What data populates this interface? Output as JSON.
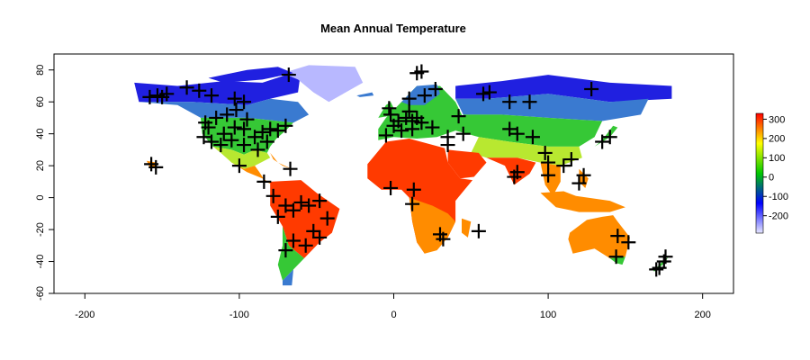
{
  "chart_data": {
    "type": "scatter",
    "title": "Mean Annual Temperature",
    "xlabel": "",
    "ylabel": "",
    "xlim": [
      -220,
      220
    ],
    "ylim": [
      -60,
      90
    ],
    "x_ticks": [
      -200,
      -100,
      0,
      100,
      200
    ],
    "y_ticks": [
      -60,
      -40,
      -20,
      0,
      20,
      40,
      60,
      80
    ],
    "colorbar": {
      "range": [
        -290,
        330
      ],
      "ticks": [
        300,
        200,
        100,
        0,
        -100,
        -200
      ],
      "colors": [
        "#e6e6ff",
        "#0000ff",
        "#00c800",
        "#ffff00",
        "#ff0000"
      ],
      "placement": "right"
    },
    "raster_colors": {
      "polar": "#2020e0",
      "ice": "#b8b8ff",
      "cold": "#3a7ad0",
      "temperate": "#36c836",
      "mild": "#b8e830",
      "warm": "#ff8c00",
      "hot": "#ff3a00",
      "tropical": "#ff6000"
    },
    "marker": "plus",
    "points": [
      {
        "x": -158,
        "y": 63
      },
      {
        "x": -153,
        "y": 64
      },
      {
        "x": -147,
        "y": 65
      },
      {
        "x": -150,
        "y": 63
      },
      {
        "x": -134,
        "y": 69
      },
      {
        "x": -126,
        "y": 67
      },
      {
        "x": -118,
        "y": 64
      },
      {
        "x": -103,
        "y": 62
      },
      {
        "x": -97,
        "y": 60
      },
      {
        "x": -102,
        "y": 55
      },
      {
        "x": -108,
        "y": 52
      },
      {
        "x": -95,
        "y": 49
      },
      {
        "x": -115,
        "y": 50
      },
      {
        "x": -122,
        "y": 47
      },
      {
        "x": -120,
        "y": 44
      },
      {
        "x": -123,
        "y": 38
      },
      {
        "x": -118,
        "y": 35
      },
      {
        "x": -112,
        "y": 33
      },
      {
        "x": -105,
        "y": 36
      },
      {
        "x": -97,
        "y": 33
      },
      {
        "x": -90,
        "y": 38
      },
      {
        "x": -85,
        "y": 41
      },
      {
        "x": -80,
        "y": 43
      },
      {
        "x": -75,
        "y": 42
      },
      {
        "x": -70,
        "y": 45
      },
      {
        "x": -88,
        "y": 30
      },
      {
        "x": -82,
        "y": 35
      },
      {
        "x": -97,
        "y": 43
      },
      {
        "x": -103,
        "y": 44
      },
      {
        "x": -110,
        "y": 40
      },
      {
        "x": -100,
        "y": 20
      },
      {
        "x": -84,
        "y": 10
      },
      {
        "x": -78,
        "y": 1
      },
      {
        "x": -70,
        "y": -5
      },
      {
        "x": -75,
        "y": -12
      },
      {
        "x": -65,
        "y": -8
      },
      {
        "x": -60,
        "y": -3
      },
      {
        "x": -55,
        "y": -5
      },
      {
        "x": -48,
        "y": -2
      },
      {
        "x": -43,
        "y": -13
      },
      {
        "x": -52,
        "y": -21
      },
      {
        "x": -48,
        "y": -25
      },
      {
        "x": -57,
        "y": -30
      },
      {
        "x": -65,
        "y": -27
      },
      {
        "x": -70,
        "y": -33
      },
      {
        "x": -67,
        "y": 18
      },
      {
        "x": -157,
        "y": 21
      },
      {
        "x": -154,
        "y": 19
      },
      {
        "x": -68,
        "y": 77
      },
      {
        "x": -2,
        "y": 52
      },
      {
        "x": 3,
        "y": 48
      },
      {
        "x": 8,
        "y": 50
      },
      {
        "x": 12,
        "y": 48
      },
      {
        "x": 15,
        "y": 50
      },
      {
        "x": 10,
        "y": 54
      },
      {
        "x": 18,
        "y": 47
      },
      {
        "x": 0,
        "y": 45
      },
      {
        "x": 5,
        "y": 42
      },
      {
        "x": 12,
        "y": 43
      },
      {
        "x": -5,
        "y": 39
      },
      {
        "x": -3,
        "y": 56
      },
      {
        "x": 10,
        "y": 62
      },
      {
        "x": 20,
        "y": 64
      },
      {
        "x": 27,
        "y": 68
      },
      {
        "x": 18,
        "y": 79
      },
      {
        "x": 15,
        "y": 78
      },
      {
        "x": 25,
        "y": 44
      },
      {
        "x": 35,
        "y": 38
      },
      {
        "x": 35,
        "y": 33
      },
      {
        "x": 42,
        "y": 51
      },
      {
        "x": 45,
        "y": 40
      },
      {
        "x": 58,
        "y": 65
      },
      {
        "x": 62,
        "y": 66
      },
      {
        "x": 75,
        "y": 60
      },
      {
        "x": 88,
        "y": 60
      },
      {
        "x": 75,
        "y": 43
      },
      {
        "x": 80,
        "y": 40
      },
      {
        "x": 90,
        "y": 38
      },
      {
        "x": 98,
        "y": 28
      },
      {
        "x": 100,
        "y": 22
      },
      {
        "x": 110,
        "y": 20
      },
      {
        "x": 115,
        "y": 24
      },
      {
        "x": 100,
        "y": 14
      },
      {
        "x": 80,
        "y": 16
      },
      {
        "x": 78,
        "y": 13
      },
      {
        "x": 120,
        "y": 9
      },
      {
        "x": 123,
        "y": 14
      },
      {
        "x": 135,
        "y": 35
      },
      {
        "x": 140,
        "y": 38
      },
      {
        "x": 128,
        "y": 68
      },
      {
        "x": -2,
        "y": 6
      },
      {
        "x": 13,
        "y": 5
      },
      {
        "x": 12,
        "y": -4
      },
      {
        "x": 30,
        "y": -23
      },
      {
        "x": 32,
        "y": -26
      },
      {
        "x": 55,
        "y": -21
      },
      {
        "x": 145,
        "y": -24
      },
      {
        "x": 152,
        "y": -28
      },
      {
        "x": 144,
        "y": -37
      },
      {
        "x": 172,
        "y": -44
      },
      {
        "x": 175,
        "y": -40
      },
      {
        "x": 176,
        "y": -37
      },
      {
        "x": 170,
        "y": -45
      }
    ]
  }
}
